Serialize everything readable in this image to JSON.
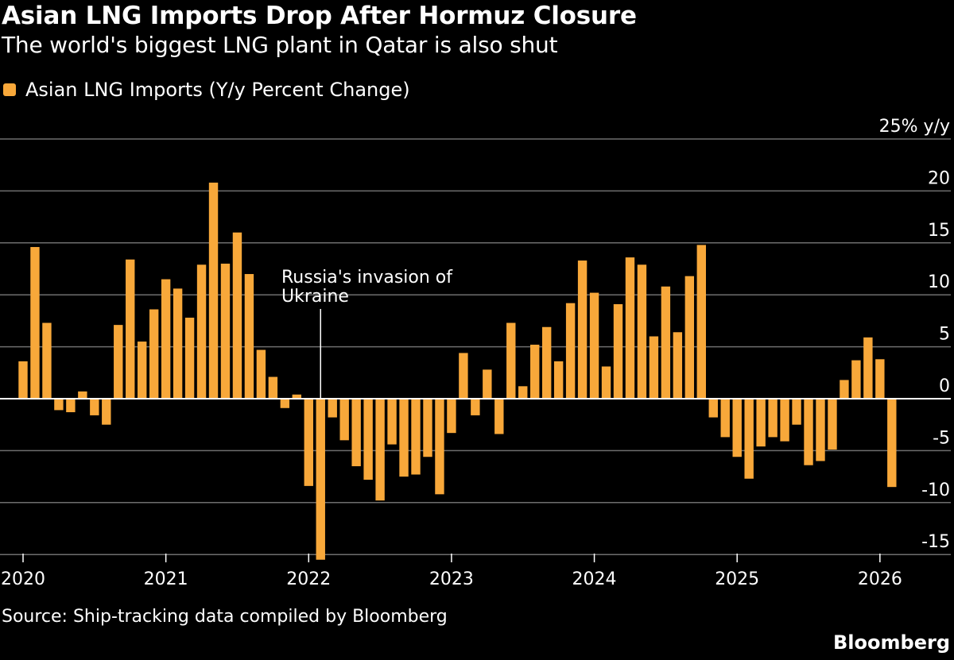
{
  "title": "Asian LNG Imports Drop After Hormuz Closure",
  "subtitle": "The world's biggest LNG plant in Qatar is also shut",
  "source": "Source: Ship-tracking data compiled by Bloomberg",
  "brand": "Bloomberg",
  "colors": {
    "background": "#000000",
    "bar": "#F8A83A",
    "grid": "#6e6e6e",
    "text": "#ffffff"
  },
  "chart_data": {
    "type": "bar",
    "title": "Asian LNG Imports Drop After Hormuz Closure",
    "series": [
      {
        "name": "Asian LNG Imports (Y/y Percent Change)",
        "start_month": "2020-01",
        "values": [
          3.6,
          14.6,
          7.3,
          -1.1,
          -1.3,
          0.7,
          -1.6,
          -2.5,
          7.1,
          13.4,
          5.5,
          8.6,
          11.5,
          10.6,
          7.8,
          12.9,
          20.8,
          13.0,
          16.0,
          12.0,
          4.7,
          2.1,
          -0.9,
          0.4,
          -8.4,
          -15.5,
          -1.8,
          -4.0,
          -6.5,
          -7.8,
          -9.8,
          -4.4,
          -7.5,
          -7.3,
          -5.6,
          -9.2,
          -3.3,
          4.4,
          -1.6,
          2.8,
          -3.4,
          7.3,
          1.2,
          5.2,
          6.9,
          3.6,
          9.2,
          13.3,
          10.2,
          3.1,
          9.1,
          13.6,
          12.9,
          6.0,
          10.8,
          6.4,
          11.8,
          14.8,
          -1.8,
          -3.7,
          -5.6,
          -7.7,
          -4.6,
          -3.7,
          -4.1,
          -2.5,
          -6.4,
          -6.0,
          -4.9,
          1.8,
          3.7,
          5.9,
          3.8,
          -8.5
        ],
        "color": "#F8A83A"
      }
    ],
    "legend": [
      "Asian LNG Imports (Y/y Percent Change)"
    ],
    "ylabel": "25% y/y",
    "ylim": [
      -15,
      25
    ],
    "yticks": [
      25,
      20,
      15,
      10,
      5,
      0,
      -5,
      -10,
      -15
    ],
    "ytick_labels": [
      "25% y/y",
      "20",
      "15",
      "10",
      "5",
      "0",
      "-5",
      "-10",
      "-15"
    ],
    "xticks": [
      "2020",
      "2021",
      "2022",
      "2023",
      "2024",
      "2025",
      "2026"
    ],
    "annotation": {
      "text_lines": [
        "Russia's invasion of",
        "Ukraine"
      ],
      "month": "2022-02"
    },
    "grid": true
  }
}
